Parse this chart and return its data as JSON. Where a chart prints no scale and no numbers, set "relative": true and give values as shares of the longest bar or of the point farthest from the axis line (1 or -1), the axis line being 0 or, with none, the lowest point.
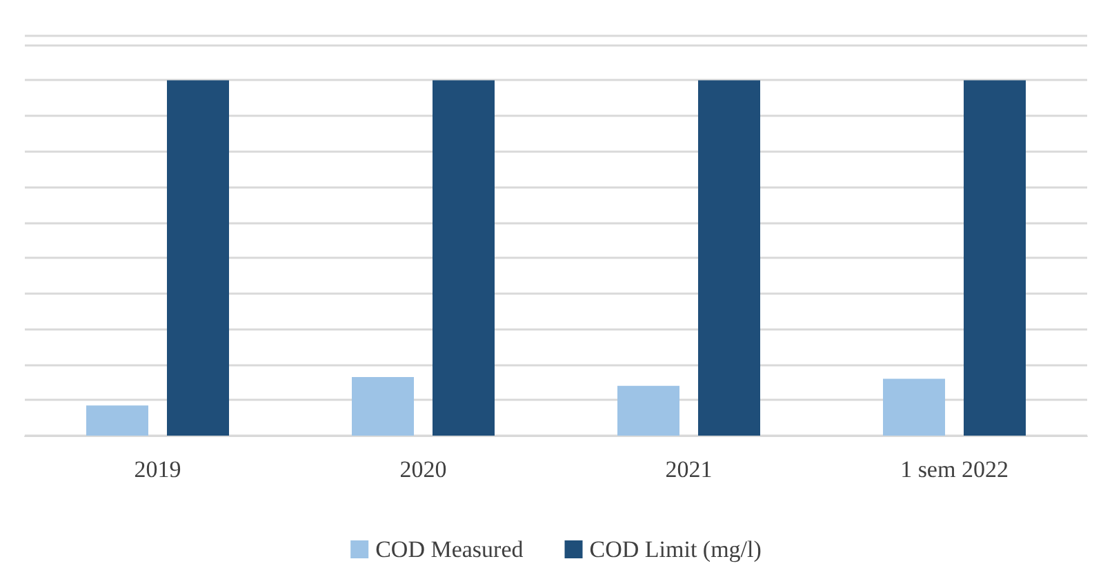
{
  "chart_data": {
    "type": "bar",
    "relative": true,
    "categories": [
      "2019",
      "2020",
      "2021",
      "1 sem 2022"
    ],
    "series": [
      {
        "name": "COD Measured",
        "color": "#9dc3e6",
        "values": [
          0.085,
          0.165,
          0.14,
          0.16
        ]
      },
      {
        "name": "COD Limit (mg/l)",
        "color": "#1f4e79",
        "values": [
          1,
          1,
          1,
          1
        ]
      }
    ],
    "grid": "y",
    "legend": "bottom"
  }
}
